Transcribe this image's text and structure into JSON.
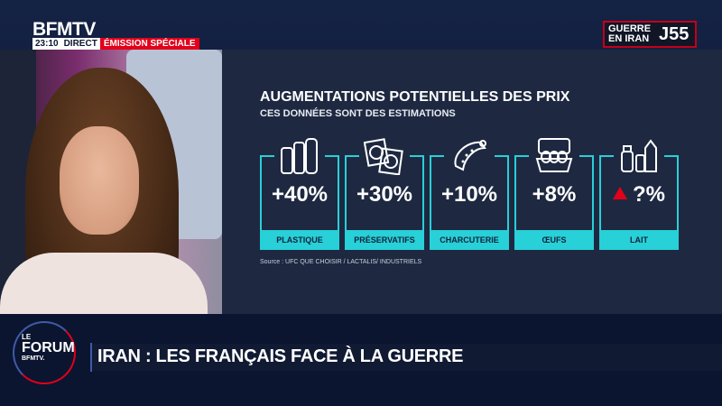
{
  "channel": {
    "name": "BFMTV"
  },
  "status": {
    "time": "23:10",
    "live": "DIRECT",
    "program": "ÉMISSION SPÉCIALE"
  },
  "badge": {
    "text": "GUERRE EN IRAN",
    "day": "J55"
  },
  "infographic": {
    "title": "AUGMENTATIONS POTENTIELLES DES PRIX",
    "subtitle": "CES DONNÉES SONT DES ESTIMATIONS",
    "items": [
      {
        "value": "+40%",
        "label": "PLASTIQUE",
        "icon": "bottles-icon"
      },
      {
        "value": "+30%",
        "label": "PRÉSERVATIFS",
        "icon": "condom-packs-icon"
      },
      {
        "value": "+10%",
        "label": "CHARCUTERIE",
        "icon": "sausage-icon"
      },
      {
        "value": "+8%",
        "label": "ŒUFS",
        "icon": "egg-carton-icon"
      },
      {
        "value": "?%",
        "label": "LAIT",
        "icon": "milk-icon",
        "marker": "up-triangle-icon"
      }
    ],
    "source": "Source : UFC QUE CHOISIR / LACTALIS/ INDUSTRIELS",
    "accent": "#28d0d8"
  },
  "lower_third": {
    "logo_le": "LE",
    "logo_forum": "FORUM",
    "logo_bfmtv": "BFMTV.",
    "headline": "IRAN : LES FRANÇAIS FACE À LA GUERRE"
  },
  "colors": {
    "red": "#e2001a",
    "navy": "#0b1630",
    "panel": "#1e2941"
  }
}
